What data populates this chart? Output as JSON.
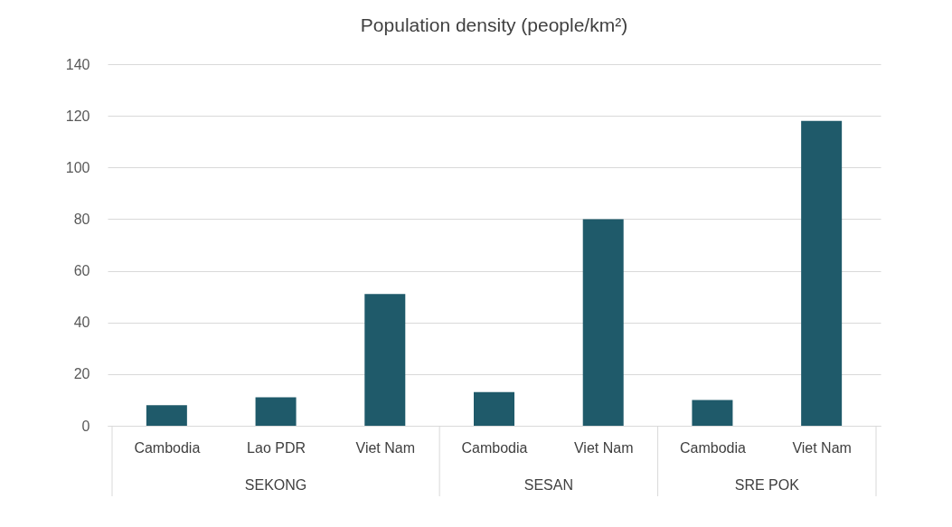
{
  "chart_data": {
    "type": "bar",
    "title": "Population density (people/km²)",
    "categories": [
      "Cambodia",
      "Lao PDR",
      "Viet Nam",
      "Cambodia",
      "Viet Nam",
      "Cambodia",
      "Viet Nam"
    ],
    "values": [
      8,
      11,
      51,
      13,
      80,
      10,
      118
    ],
    "color": "#1f5a6a",
    "ylim": [
      0,
      140
    ],
    "yticks": [
      0,
      20,
      40,
      60,
      80,
      100,
      120,
      140
    ],
    "grid": "y",
    "annotations": [
      "SEKONG",
      "SESAN",
      "SRE POK"
    ]
  }
}
